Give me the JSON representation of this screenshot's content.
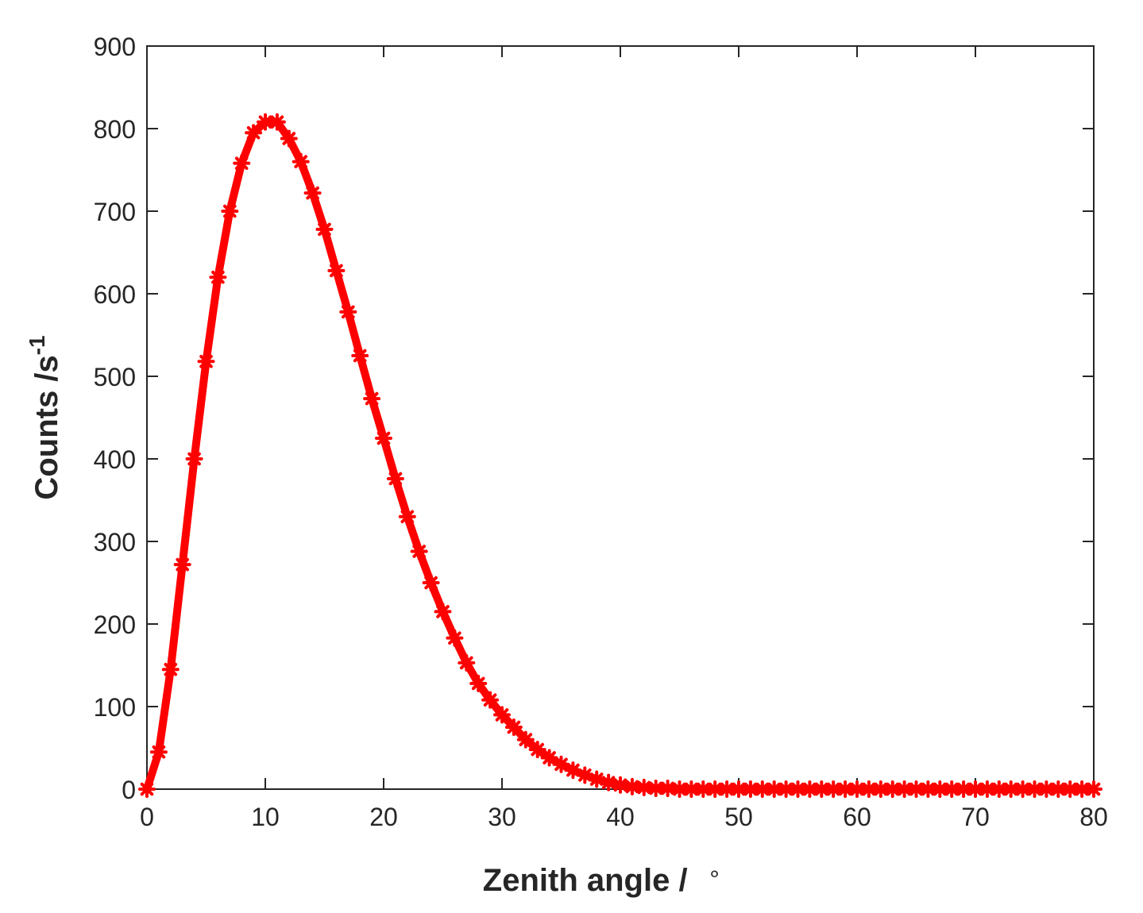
{
  "chart_data": {
    "type": "line",
    "xlabel": "Zenith angle / ",
    "xlabel_unit": "∘",
    "ylabel_main": "Counts /s",
    "ylabel_sup": "-1",
    "xlim": [
      0,
      80
    ],
    "ylim": [
      0,
      900
    ],
    "xticks": [
      0,
      10,
      20,
      30,
      40,
      50,
      60,
      70,
      80
    ],
    "yticks": [
      0,
      100,
      200,
      300,
      400,
      500,
      600,
      700,
      800,
      900
    ],
    "xtick_labels": [
      "0",
      "10",
      "20",
      "30",
      "40",
      "50",
      "60",
      "70",
      "80"
    ],
    "ytick_labels": [
      "0",
      "100",
      "200",
      "300",
      "400",
      "500",
      "600",
      "700",
      "800",
      "900"
    ],
    "grid": false,
    "box": true,
    "series": [
      {
        "color": "#ff0000",
        "marker": "star",
        "x": [
          0,
          1,
          2,
          3,
          4,
          5,
          6,
          7,
          8,
          9,
          10,
          11,
          12,
          13,
          14,
          15,
          16,
          17,
          18,
          19,
          20,
          21,
          22,
          23,
          24,
          25,
          26,
          27,
          28,
          29,
          30,
          31,
          32,
          33,
          34,
          35,
          36,
          37,
          38,
          39,
          40,
          41,
          42,
          43,
          44,
          45,
          46,
          47,
          48,
          49,
          50,
          51,
          52,
          53,
          54,
          55,
          56,
          57,
          58,
          59,
          60,
          61,
          62,
          63,
          64,
          65,
          66,
          67,
          68,
          69,
          70,
          71,
          72,
          73,
          74,
          75,
          76,
          77,
          78,
          79,
          80
        ],
        "y": [
          0,
          45,
          145,
          272,
          400,
          518,
          620,
          700,
          758,
          795,
          808,
          808,
          788,
          760,
          722,
          678,
          628,
          578,
          525,
          473,
          425,
          376,
          330,
          288,
          250,
          215,
          183,
          153,
          128,
          108,
          90,
          75,
          60,
          48,
          38,
          30,
          23,
          17,
          12,
          8,
          5,
          3,
          2,
          1,
          1,
          0,
          0,
          0,
          0,
          0,
          0,
          0,
          0,
          0,
          0,
          0,
          0,
          0,
          0,
          0,
          0,
          0,
          0,
          0,
          0,
          0,
          0,
          0,
          0,
          0,
          0,
          0,
          0,
          0,
          0,
          0,
          0,
          0,
          0,
          0,
          0
        ]
      }
    ]
  }
}
